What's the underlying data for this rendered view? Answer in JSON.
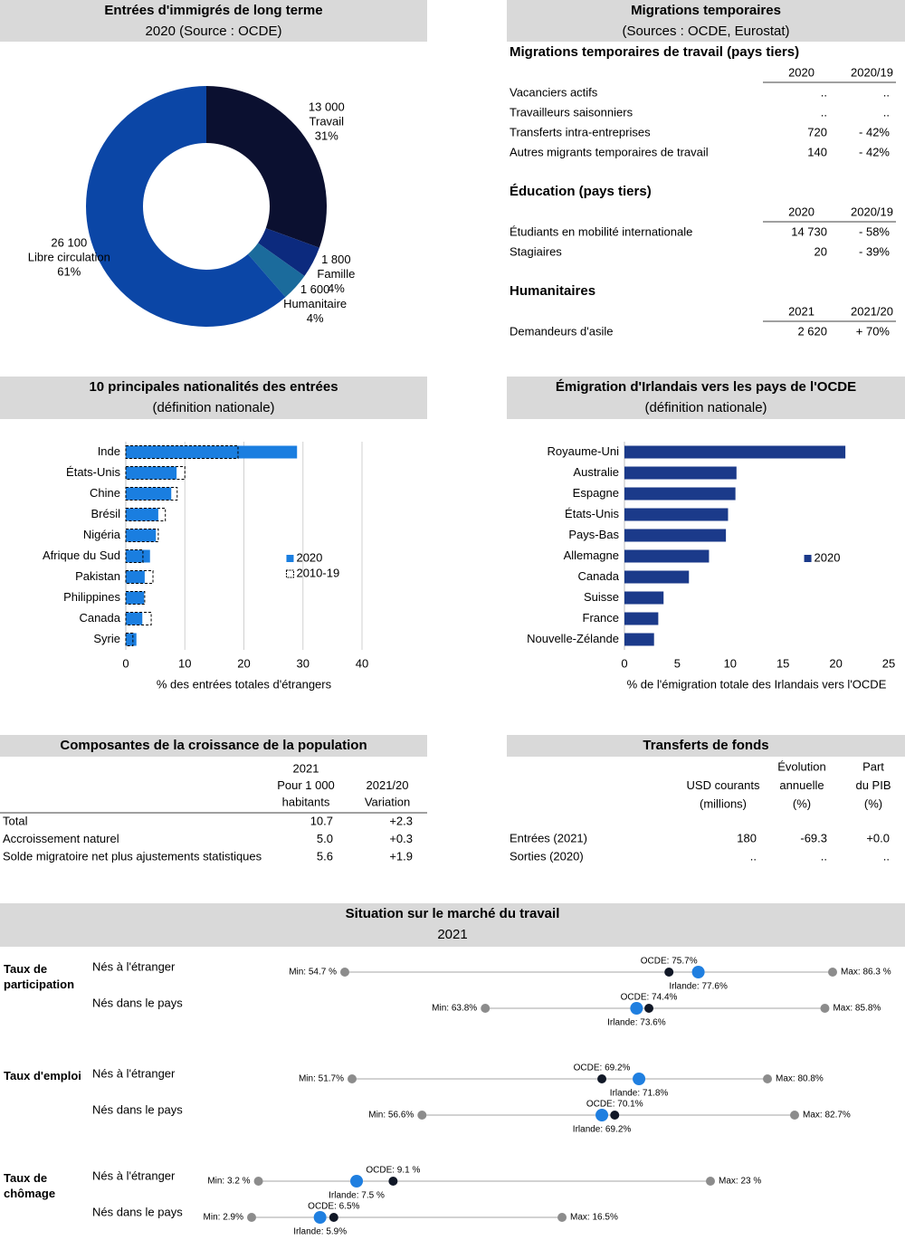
{
  "chart_data": [
    {
      "type": "pie",
      "title": "Entrées d'immigrés de long terme",
      "subtitle": "2020 (Source : OCDE)",
      "categories": [
        "Travail",
        "Famille",
        "Humanitaire",
        "Libre circulation"
      ],
      "values": [
        13000,
        1800,
        1600,
        26100
      ],
      "value_labels": [
        "13 000",
        "1 800",
        "1 600",
        "26 100"
      ],
      "shares": [
        31,
        4,
        4,
        61
      ],
      "share_labels": [
        "31%",
        "4%",
        "4%",
        "61%"
      ],
      "colors": [
        "#0b1030",
        "#0c2a7e",
        "#1b6b9c",
        "#0b46a6"
      ]
    },
    {
      "type": "hbar",
      "title": "10 principales nationalités des entrées",
      "subtitle": "(définition nationale)",
      "categories": [
        "Inde",
        "États-Unis",
        "Chine",
        "Brésil",
        "Nigéria",
        "Afrique du Sud",
        "Pakistan",
        "Philippines",
        "Canada",
        "Syrie"
      ],
      "series": [
        {
          "name": "2020",
          "color": "#1a7ee0",
          "values": [
            29.0,
            8.6,
            7.7,
            5.5,
            5.1,
            4.1,
            3.2,
            3.1,
            2.8,
            1.8
          ]
        },
        {
          "name": "2010-19",
          "color": "#000000",
          "dashed": true,
          "values": [
            19.0,
            10.0,
            8.7,
            6.7,
            5.5,
            2.9,
            4.6,
            3.2,
            4.3,
            1.2
          ]
        }
      ],
      "xlim": [
        0,
        40
      ],
      "xticks": [
        0,
        10,
        20,
        30,
        40
      ],
      "xlabel": "% des entrées totales d'étrangers",
      "grid": true,
      "legend": "right"
    },
    {
      "type": "hbar",
      "title": "Émigration d'Irlandais vers les pays de l'OCDE",
      "subtitle": "(définition nationale)",
      "categories": [
        "Royaume-Uni",
        "Australie",
        "Espagne",
        "États-Unis",
        "Pays-Bas",
        "Allemagne",
        "Canada",
        "Suisse",
        "France",
        "Nouvelle-Zélande"
      ],
      "series": [
        {
          "name": "2020",
          "color": "#1b3a8a",
          "values": [
            20.9,
            10.6,
            10.5,
            9.8,
            9.6,
            8.0,
            6.1,
            3.7,
            3.2,
            2.8
          ]
        }
      ],
      "xlim": [
        0,
        25
      ],
      "xticks": [
        0,
        5,
        10,
        15,
        20,
        25
      ],
      "xlabel": "% de l'émigration totale des Irlandais vers l'OCDE",
      "grid": false,
      "legend": "right"
    },
    {
      "type": "dotrange",
      "title": "Situation sur le marché du travail",
      "subtitle": "2021",
      "point_colors": [
        "#8c8c8c",
        "#111827",
        "#1f7fe0",
        "#8c8c8c"
      ],
      "groups": [
        {
          "name": "Taux de participation",
          "rows": [
            {
              "name": "Nés à l'étranger",
              "values": [
                54.7,
                75.7,
                77.6,
                86.3
              ],
              "value_labels": [
                "Min: 54.7 %",
                "OCDE: 75.7%",
                "Irlande: 77.6%",
                "Max: 86.3 %"
              ]
            },
            {
              "name": "Nés dans le pays",
              "values": [
                63.8,
                74.4,
                73.6,
                85.8
              ],
              "value_labels": [
                "Min: 63.8%",
                "OCDE: 74.4%",
                "Irlande: 73.6%",
                "Max: 85.8%"
              ]
            }
          ]
        },
        {
          "name": "Taux d'emploi",
          "rows": [
            {
              "name": "Nés à l'étranger",
              "values": [
                51.7,
                69.2,
                71.8,
                80.8
              ],
              "value_labels": [
                "Min: 51.7%",
                "OCDE: 69.2%",
                "Irlande: 71.8%",
                "Max: 80.8%"
              ]
            },
            {
              "name": "Nés dans le pays",
              "values": [
                56.6,
                70.1,
                69.2,
                82.7
              ],
              "value_labels": [
                "Min: 56.6%",
                "OCDE: 70.1%",
                "Irlande: 69.2%",
                "Max: 82.7%"
              ]
            }
          ]
        },
        {
          "name": "Taux de chômage",
          "rows": [
            {
              "name": "Nés à l'étranger",
              "values": [
                3.2,
                9.1,
                7.5,
                23
              ],
              "value_labels": [
                "Min: 3.2 %",
                "OCDE: 9.1 %",
                "Irlande: 7.5 %",
                "Max: 23 %"
              ]
            },
            {
              "name": "Nés dans le pays",
              "values": [
                2.9,
                6.5,
                5.9,
                16.5
              ],
              "value_labels": [
                "Min: 2.9%",
                "OCDE: 6.5%",
                "Irlande: 5.9%",
                "Max: 16.5%"
              ]
            }
          ]
        }
      ]
    }
  ],
  "temporary_migration": {
    "title": "Migrations temporaires",
    "subtitle": "(Sources : OCDE, Eurostat)",
    "sections": [
      {
        "title": "Migrations temporaires de travail (pays tiers)",
        "columns": [
          "2020",
          "2020/19"
        ],
        "rows": [
          [
            "Vacanciers actifs",
            "..",
            ".."
          ],
          [
            "Travailleurs saisonniers",
            "..",
            ".."
          ],
          [
            "Transferts intra-entreprises",
            "720",
            "- 42%"
          ],
          [
            "Autres migrants temporaires de travail",
            "140",
            "- 42%"
          ]
        ]
      },
      {
        "title": "Éducation (pays tiers)",
        "columns": [
          "2020",
          "2020/19"
        ],
        "rows": [
          [
            "Étudiants en mobilité internationale",
            "14 730",
            "- 58%"
          ],
          [
            "Stagiaires",
            "20",
            "- 39%"
          ]
        ]
      },
      {
        "title": "Humanitaires",
        "columns": [
          "2021",
          "2021/20"
        ],
        "rows": [
          [
            "Demandeurs d'asile",
            "2 620",
            "+ 70%"
          ]
        ]
      }
    ]
  },
  "population_growth": {
    "title": "Composantes de la croissance de la population",
    "columns": [
      [
        "2021",
        "Pour 1 000",
        "habitants"
      ],
      [
        "2021/20",
        "Variation"
      ]
    ],
    "rows": [
      [
        "Total",
        "10.7",
        "+2.3"
      ],
      [
        "Accroissement naturel",
        "5.0",
        "+0.3"
      ],
      [
        "Solde migratoire net plus ajustements statistiques",
        "5.6",
        "+1.9"
      ]
    ]
  },
  "remittances": {
    "title": "Transferts de fonds",
    "columns": [
      [
        "USD courants",
        "(millions)"
      ],
      [
        "Évolution",
        "annuelle",
        "(%)"
      ],
      [
        "Part",
        "du PIB",
        "(%)"
      ]
    ],
    "rows": [
      [
        "Entrées (2021)",
        "180",
        "-69.3",
        "+0.0"
      ],
      [
        "Sorties (2020)",
        "..",
        "..",
        ".."
      ]
    ]
  }
}
